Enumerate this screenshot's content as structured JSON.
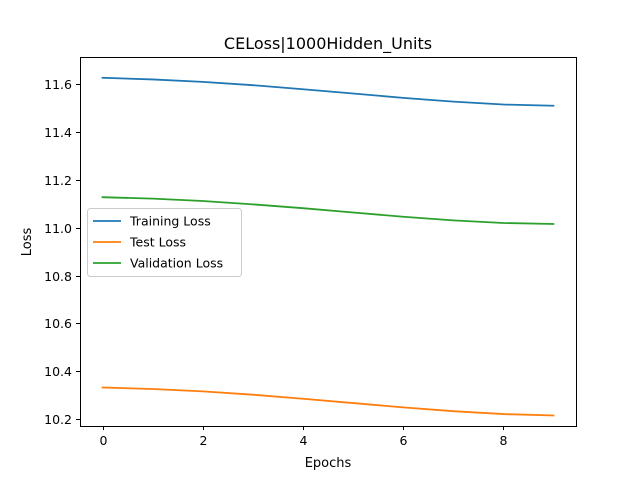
{
  "chart_data": {
    "type": "line",
    "title": "CELoss|1000Hidden_Units",
    "xlabel": "Epochs",
    "ylabel": "Loss",
    "xlim": [
      -0.45,
      9.45
    ],
    "ylim": [
      10.17,
      11.715
    ],
    "xticks": [
      0,
      2,
      4,
      6,
      8
    ],
    "xtick_labels": [
      "0",
      "2",
      "4",
      "6",
      "8"
    ],
    "yticks": [
      10.2,
      10.4,
      10.6,
      10.8,
      11.0,
      11.2,
      11.4,
      11.6
    ],
    "ytick_labels": [
      "10.2",
      "10.4",
      "10.6",
      "10.8",
      "11.0",
      "11.2",
      "11.4",
      "11.6"
    ],
    "grid": false,
    "legend_position": "center-left",
    "x": [
      0,
      1,
      2,
      3,
      4,
      5,
      6,
      7,
      8,
      9
    ],
    "series": [
      {
        "name": "Training Loss",
        "color": "#1f77b4",
        "values": [
          11.628,
          11.621,
          11.611,
          11.597,
          11.58,
          11.562,
          11.544,
          11.528,
          11.516,
          11.511
        ]
      },
      {
        "name": "Test Loss",
        "color": "#ff7f0e",
        "values": [
          10.331,
          10.325,
          10.315,
          10.301,
          10.284,
          10.266,
          10.248,
          10.232,
          10.22,
          10.214
        ]
      },
      {
        "name": "Validation Loss",
        "color": "#2ca02c",
        "values": [
          11.128,
          11.122,
          11.112,
          11.098,
          11.082,
          11.064,
          11.046,
          11.031,
          11.02,
          11.016
        ]
      }
    ]
  }
}
